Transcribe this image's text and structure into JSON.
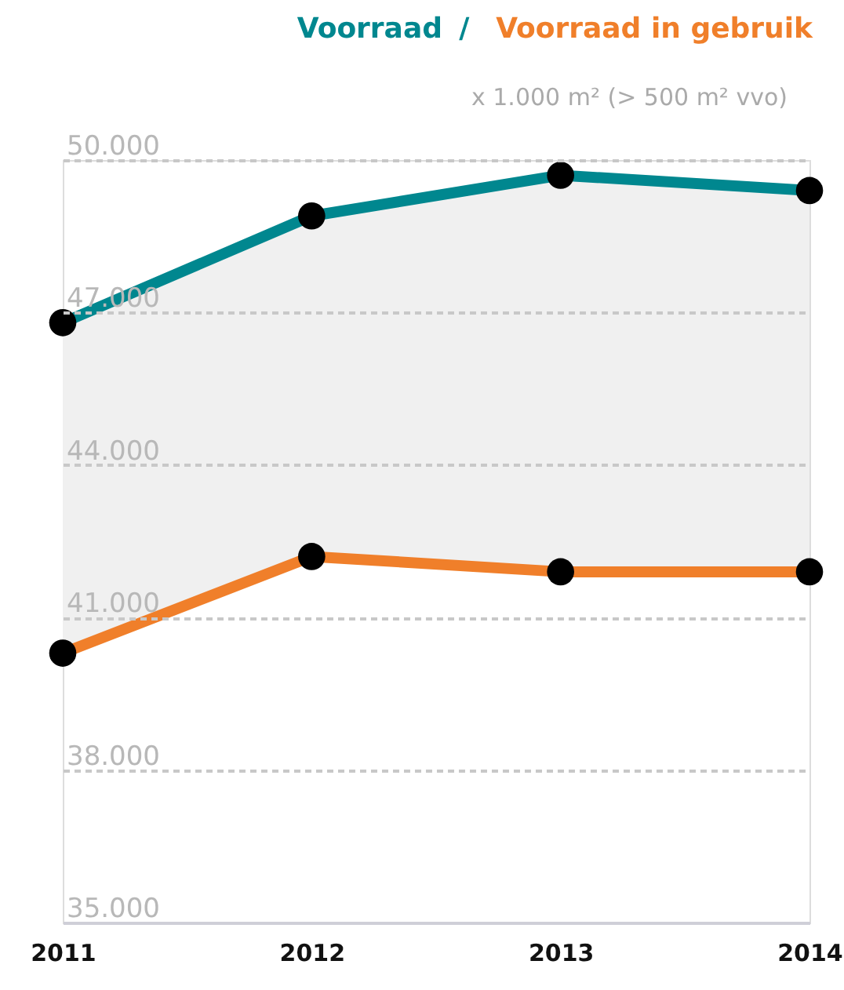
{
  "chart_data": {
    "type": "line",
    "ylabel": "x 1.000 m² (> 500 m² vvo)",
    "categories": [
      "2011",
      "2012",
      "2013",
      "2014"
    ],
    "series": [
      {
        "name": "Voorraad",
        "color": "#00878f",
        "values": [
          46800,
          48900,
          49700,
          49400
        ],
        "lower": [
          40300,
          42200,
          41900,
          41900
        ],
        "upper": [
          46800,
          48900,
          49700,
          49400
        ]
      },
      {
        "name": "Voorraad in gebruik",
        "color": "#f07f2a",
        "values": [
          40300,
          42200,
          41900,
          41900
        ]
      }
    ],
    "ylim": [
      35000,
      50000
    ],
    "yticks": [
      {
        "value": 35000,
        "label": "35.000"
      },
      {
        "value": 38000,
        "label": "38.000"
      },
      {
        "value": 41000,
        "label": "41.000"
      },
      {
        "value": 44000,
        "label": "44.000"
      },
      {
        "value": 47000,
        "label": "47.000"
      },
      {
        "value": 50000,
        "label": "50.000"
      }
    ],
    "annotations": [
      "/"
    ],
    "grid": "y",
    "legend": "top right",
    "marker": "circle",
    "line_style": "solid"
  }
}
